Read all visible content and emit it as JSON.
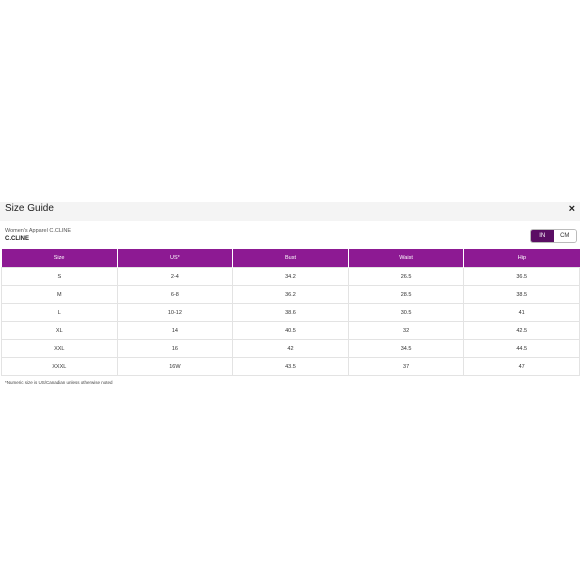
{
  "dialog": {
    "title": "Size Guide",
    "close_label": "×",
    "subtitle": "Women's Apparel C.CLINE",
    "brand": "C.CLINE",
    "unit_toggle": {
      "in_label": "IN",
      "cm_label": "CM",
      "selected": "IN"
    },
    "accent_color": "#8d1a93",
    "footnote": "*Numeric size is US/Canadian unless otherwise noted"
  },
  "table": {
    "headers": [
      "Size",
      "US*",
      "Bust",
      "Waist",
      "Hip"
    ],
    "rows": [
      [
        "S",
        "2-4",
        "34.2",
        "26.5",
        "36.5"
      ],
      [
        "M",
        "6-8",
        "36.2",
        "28.5",
        "38.5"
      ],
      [
        "L",
        "10-12",
        "38.6",
        "30.5",
        "41"
      ],
      [
        "XL",
        "14",
        "40.5",
        "32",
        "42.5"
      ],
      [
        "XXL",
        "16",
        "42",
        "34.5",
        "44.5"
      ],
      [
        "XXXL",
        "16W",
        "43.5",
        "37",
        "47"
      ]
    ]
  }
}
